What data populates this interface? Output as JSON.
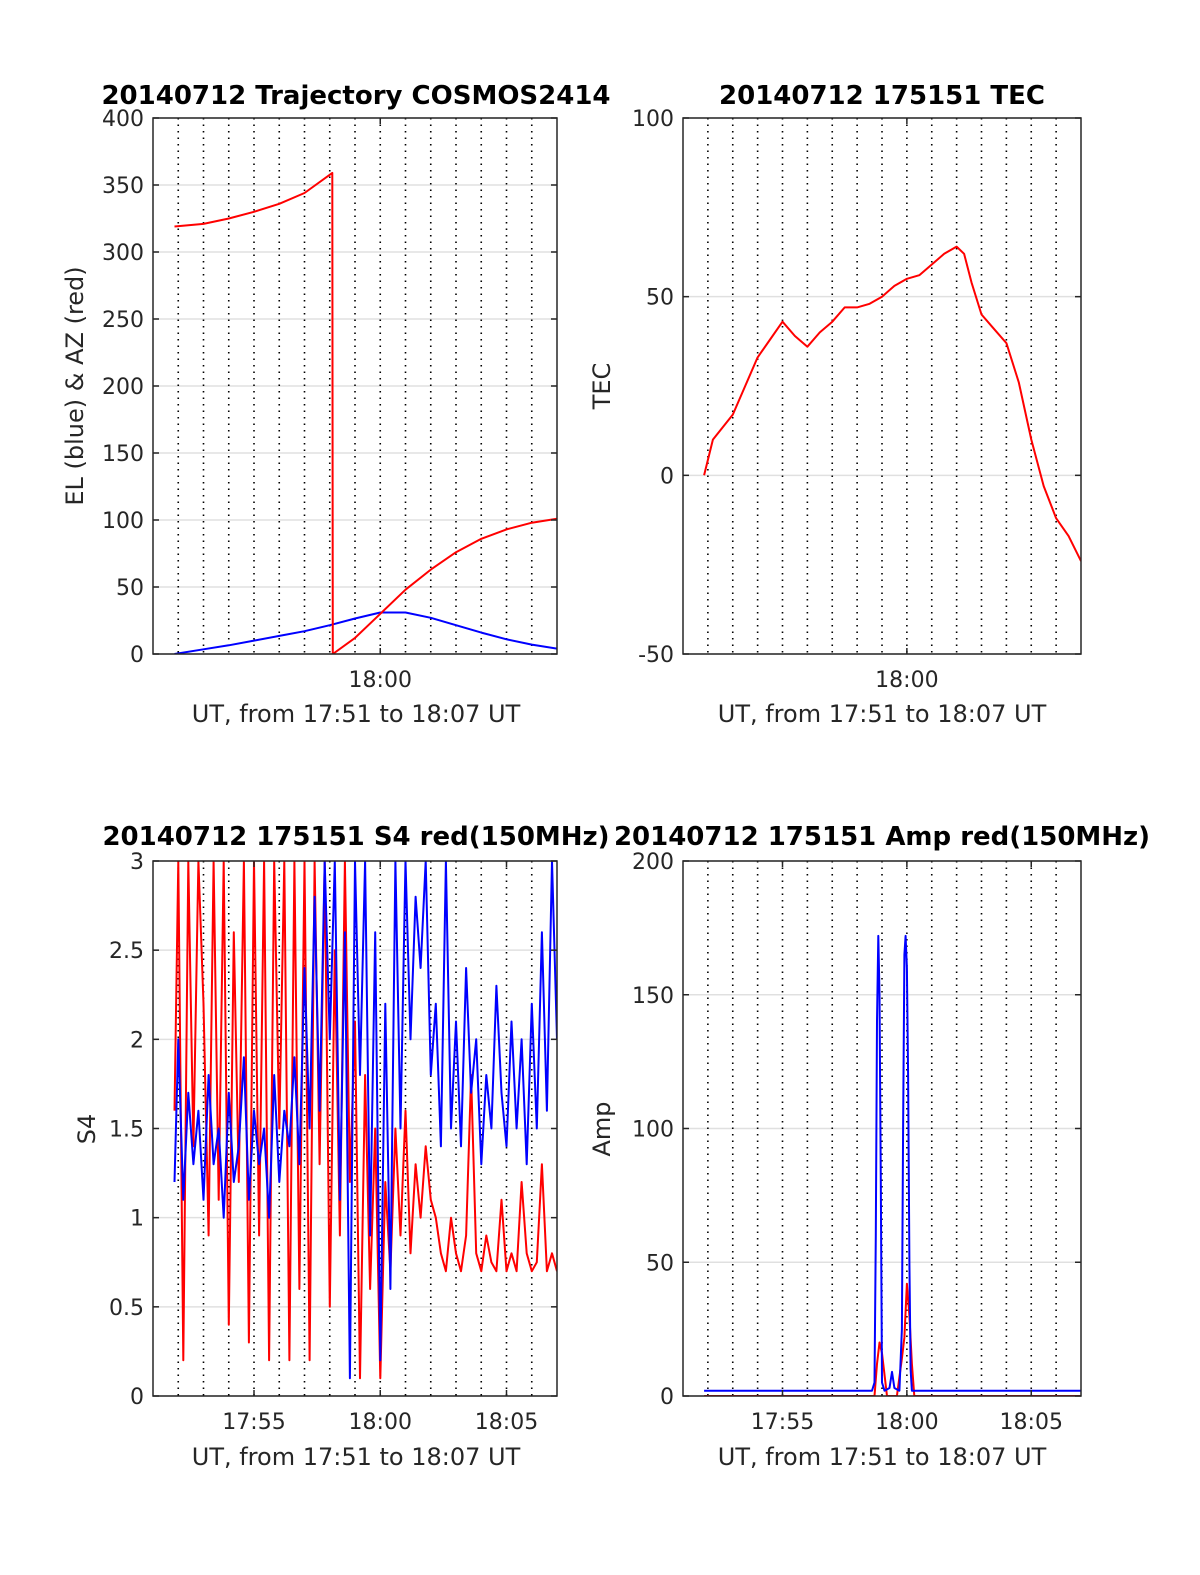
{
  "chart_data": [
    {
      "type": "line",
      "title": "20140712 Trajectory COSMOS2414",
      "xlabel": "UT, from 17:51 to 18:07 UT",
      "ylabel": "EL (blue) & AZ (red)",
      "xlim_minutes": [
        0,
        16
      ],
      "ylim": [
        0,
        400
      ],
      "yticks": [
        0,
        50,
        100,
        150,
        200,
        250,
        300,
        350,
        400
      ],
      "xticks": [
        {
          "t": 9,
          "label": "18:00"
        }
      ],
      "grid": true,
      "vgrid_minutes": [
        1,
        2,
        3,
        4,
        5,
        6,
        7,
        8,
        9,
        10,
        11,
        12,
        13,
        14,
        15
      ],
      "series": [
        {
          "color": "#0000ff",
          "x": [
            0.85,
            2,
            3,
            4,
            5,
            6,
            7,
            8,
            9,
            10,
            11,
            12,
            13,
            14,
            15,
            16
          ],
          "y": [
            0,
            3.5,
            6.5,
            10,
            13.5,
            17,
            21.5,
            26.5,
            31,
            31,
            27,
            21.5,
            16,
            11,
            7,
            4
          ]
        },
        {
          "color": "#ff0000",
          "x": [
            0.85,
            2,
            3,
            4,
            5,
            6,
            7.1,
            7.12,
            8,
            9,
            10,
            11,
            12,
            13,
            14,
            15,
            16
          ],
          "y": [
            319,
            321,
            325,
            330,
            336,
            344,
            359,
            0,
            12,
            30,
            48,
            63,
            76,
            86,
            93,
            98,
            101
          ]
        }
      ]
    },
    {
      "type": "line",
      "title": "20140712 175151 TEC",
      "xlabel": "UT, from 17:51 to 18:07 UT",
      "ylabel": "TEC",
      "xlim_minutes": [
        0,
        16
      ],
      "ylim": [
        -50,
        100
      ],
      "yticks": [
        -50,
        0,
        50,
        100
      ],
      "xticks": [
        {
          "t": 9,
          "label": "18:00"
        }
      ],
      "grid": true,
      "vgrid_minutes": [
        1,
        2,
        3,
        4,
        5,
        6,
        7,
        8,
        9,
        10,
        11,
        12,
        13,
        14,
        15
      ],
      "series": [
        {
          "color": "#ff0000",
          "x": [
            0.85,
            1.2,
            2,
            2.5,
            3,
            3.5,
            4,
            4.5,
            5,
            5.5,
            6,
            6.5,
            7,
            7.5,
            8,
            8.5,
            9,
            9.5,
            10,
            10.5,
            11,
            11.3,
            11.6,
            12,
            12.5,
            13,
            13.5,
            14,
            14.5,
            15,
            15.5,
            16
          ],
          "y": [
            0,
            10,
            17,
            25,
            33,
            38,
            43,
            39,
            36,
            40,
            43,
            47,
            47,
            48,
            50,
            53,
            55,
            56,
            59,
            62,
            64,
            62,
            54,
            45,
            41,
            37,
            26,
            10,
            -3,
            -12,
            -17,
            -24
          ]
        }
      ]
    },
    {
      "type": "line",
      "title": "20140712 175151 S4 red(150MHz)",
      "xlabel": "UT, from 17:51 to 18:07 UT",
      "ylabel": "S4",
      "xlim_minutes": [
        0,
        16
      ],
      "ylim": [
        0,
        3
      ],
      "yticks": [
        0,
        0.5,
        1,
        1.5,
        2,
        2.5,
        3
      ],
      "xticks": [
        {
          "t": 4,
          "label": "17:55"
        },
        {
          "t": 9,
          "label": "18:00"
        },
        {
          "t": 14,
          "label": "18:05"
        }
      ],
      "grid": true,
      "vgrid_minutes": [
        1,
        2,
        3,
        4,
        5,
        6,
        7,
        8,
        9,
        10,
        11,
        12,
        13,
        14,
        15
      ],
      "series": [
        {
          "color": "#ff0000",
          "x": [
            0.85,
            1,
            1.2,
            1.4,
            1.6,
            1.8,
            2,
            2.2,
            2.4,
            2.6,
            2.8,
            3,
            3.2,
            3.4,
            3.6,
            3.8,
            4,
            4.2,
            4.4,
            4.6,
            4.8,
            5,
            5.2,
            5.4,
            5.6,
            5.8,
            6,
            6.2,
            6.4,
            6.6,
            6.8,
            7,
            7.2,
            7.4,
            7.6,
            7.8,
            8,
            8.2,
            8.4,
            8.6,
            8.8,
            9,
            9.2,
            9.4,
            9.6,
            9.8,
            10,
            10.2,
            10.4,
            10.6,
            10.8,
            11,
            11.2,
            11.4,
            11.6,
            11.8,
            12,
            12.2,
            12.4,
            12.6,
            12.8,
            13,
            13.2,
            13.4,
            13.6,
            13.8,
            14,
            14.2,
            14.4,
            14.6,
            14.8,
            15,
            15.2,
            15.4,
            15.6,
            15.8,
            16
          ],
          "y": [
            1.6,
            3,
            0.2,
            3,
            1.4,
            3,
            2.2,
            0.9,
            3,
            1.1,
            3,
            0.4,
            2.6,
            1.2,
            3,
            0.3,
            3,
            0.9,
            3,
            0.2,
            3,
            1.5,
            3,
            0.2,
            3,
            0.6,
            3,
            0.2,
            3,
            1.3,
            3,
            0.5,
            2.5,
            0.9,
            3,
            1.2,
            2.1,
            0.1,
            1.8,
            0.6,
            1.5,
            0.1,
            1.2,
            0.7,
            1.5,
            0.9,
            1.6,
            0.8,
            1.3,
            1,
            1.4,
            1.1,
            1,
            0.8,
            0.7,
            1,
            0.8,
            0.7,
            0.9,
            1.8,
            0.8,
            0.7,
            0.9,
            0.75,
            0.7,
            1.1,
            0.7,
            0.8,
            0.7,
            1.2,
            0.8,
            0.7,
            0.75,
            1.3,
            0.7,
            0.8,
            0.7
          ]
        },
        {
          "color": "#0000ff",
          "x": [
            0.85,
            1,
            1.2,
            1.4,
            1.6,
            1.8,
            2,
            2.2,
            2.4,
            2.6,
            2.8,
            3,
            3.2,
            3.4,
            3.6,
            3.8,
            4,
            4.2,
            4.4,
            4.6,
            4.8,
            5,
            5.2,
            5.4,
            5.6,
            5.8,
            6,
            6.2,
            6.4,
            6.6,
            6.8,
            7,
            7.2,
            7.4,
            7.6,
            7.8,
            8,
            8.2,
            8.4,
            8.6,
            8.8,
            9,
            9.2,
            9.4,
            9.6,
            9.8,
            10,
            10.2,
            10.4,
            10.6,
            10.8,
            11,
            11.2,
            11.4,
            11.6,
            11.8,
            12,
            12.2,
            12.4,
            12.6,
            12.8,
            13,
            13.2,
            13.4,
            13.6,
            13.8,
            14,
            14.2,
            14.4,
            14.6,
            14.8,
            15,
            15.2,
            15.4,
            15.6,
            15.8,
            16
          ],
          "y": [
            1.2,
            2,
            1.1,
            1.7,
            1.3,
            1.6,
            1.1,
            1.8,
            1.3,
            1.5,
            1.0,
            1.7,
            1.2,
            1.4,
            1.9,
            1.1,
            1.6,
            1.3,
            1.5,
            1.0,
            1.8,
            1.2,
            1.6,
            1.4,
            1.9,
            1.3,
            2.4,
            1.5,
            2.8,
            1.6,
            3,
            2.0,
            3,
            1.1,
            2.6,
            0.1,
            3,
            1.8,
            3,
            0.9,
            2.6,
            0.2,
            2.2,
            0.6,
            3,
            1.5,
            3,
            2,
            2.8,
            2.4,
            3,
            1.8,
            2.2,
            1.4,
            3,
            1.5,
            2.1,
            1.4,
            2.4,
            1.7,
            2.0,
            1.3,
            1.8,
            1.5,
            2.3,
            1.7,
            1.4,
            2.1,
            1.5,
            2.0,
            1.3,
            2.2,
            1.5,
            2.6,
            1.6,
            3,
            2.0
          ]
        }
      ]
    },
    {
      "type": "line",
      "title": "20140712 175151 Amp red(150MHz)",
      "xlabel": "UT, from 17:51 to 18:07 UT",
      "ylabel": "Amp",
      "xlim_minutes": [
        0,
        16
      ],
      "ylim": [
        0,
        200
      ],
      "yticks": [
        0,
        50,
        100,
        150,
        200
      ],
      "xticks": [
        {
          "t": 4,
          "label": "17:55"
        },
        {
          "t": 9,
          "label": "18:00"
        },
        {
          "t": 14,
          "label": "18:05"
        }
      ],
      "grid": true,
      "vgrid_minutes": [
        1,
        2,
        3,
        4,
        5,
        6,
        7,
        8,
        9,
        10,
        11,
        12,
        13,
        14,
        15
      ],
      "series": [
        {
          "color": "#ff0000",
          "x": [
            0.85,
            7.7,
            7.8,
            7.9,
            8.0,
            8.1,
            8.2,
            8.6,
            8.8,
            8.9,
            9.0,
            9.1,
            9.2,
            9.3,
            16
          ],
          "y": [
            0,
            0,
            12,
            20,
            16,
            8,
            0,
            0,
            14,
            22,
            42,
            30,
            12,
            0,
            0
          ]
        },
        {
          "color": "#0000ff",
          "x": [
            0.85,
            2,
            3,
            4,
            5,
            6,
            7,
            7.6,
            7.7,
            7.75,
            7.8,
            7.85,
            7.9,
            7.95,
            8.0,
            8.1,
            8.3,
            8.4,
            8.5,
            8.7,
            8.8,
            8.85,
            8.9,
            8.95,
            9.0,
            9.05,
            9.1,
            9.15,
            9.2,
            9.3,
            10,
            11,
            12,
            13,
            14,
            15,
            16
          ],
          "y": [
            2,
            2,
            2,
            2,
            2,
            2,
            2,
            2,
            5,
            60,
            140,
            172,
            150,
            80,
            5,
            2,
            3,
            9,
            3,
            2,
            25,
            100,
            165,
            172,
            160,
            120,
            50,
            10,
            2,
            2,
            2,
            2,
            2,
            2,
            2,
            2,
            2
          ]
        }
      ]
    }
  ]
}
